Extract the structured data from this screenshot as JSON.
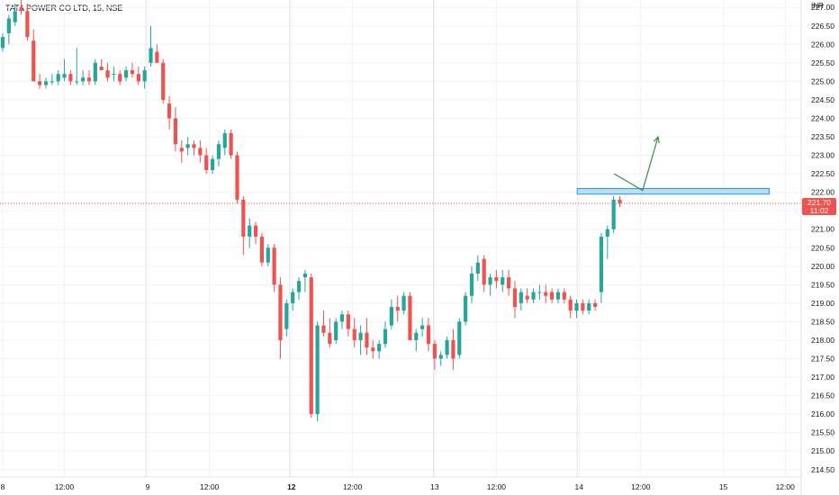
{
  "header": {
    "symbol_title": "TATA POWER CO LTD, 15, NSE"
  },
  "currency": "INR",
  "last_price": {
    "value": "221.70",
    "countdown": "11:02",
    "value_num": 221.7
  },
  "colors": {
    "up": "#26a69a",
    "down": "#ef5350",
    "grid": "#f0f3fa",
    "text": "#131722",
    "drawing": "#388e3c",
    "zone_fill": "#bbdefb",
    "zone_stroke": "#2196f3"
  },
  "chart_data": {
    "type": "candlestick",
    "title": "",
    "ylim": [
      214.3,
      227.2
    ],
    "y_ticks": [
      227.0,
      226.5,
      226.0,
      225.5,
      225.0,
      224.5,
      224.0,
      223.5,
      223.0,
      222.5,
      222.0,
      221.5,
      221.0,
      220.5,
      220.0,
      219.5,
      219.0,
      218.5,
      218.0,
      217.5,
      217.0,
      216.5,
      216.0,
      215.5,
      215.0,
      214.5
    ],
    "x_ticks": [
      {
        "label": "8",
        "bar": 0,
        "bold": false
      },
      {
        "label": "12:00",
        "bar": 10,
        "bold": false
      },
      {
        "label": "9",
        "bar": 23.5,
        "bold": false
      },
      {
        "label": "12:00",
        "bar": 33.5,
        "bold": false
      },
      {
        "label": "12",
        "bar": 46.8,
        "bold": true
      },
      {
        "label": "12:00",
        "bar": 56.7,
        "bold": false
      },
      {
        "label": "13",
        "bar": 70,
        "bold": false
      },
      {
        "label": "12:00",
        "bar": 80,
        "bold": false
      },
      {
        "label": "14",
        "bar": 93.4,
        "bold": false
      },
      {
        "label": "12:00",
        "bar": 103.4,
        "bold": false
      },
      {
        "label": "15",
        "bar": 116.8,
        "bold": false
      },
      {
        "label": "12:00",
        "bar": 126.8,
        "bold": false
      }
    ],
    "day_separators": [
      23.2,
      46.5,
      69.8,
      93.1
    ],
    "candles": [
      [
        225.9,
        226.3,
        225.8,
        226.2
      ],
      [
        226.3,
        226.8,
        226.0,
        226.7
      ],
      [
        226.6,
        227.1,
        226.5,
        226.9
      ],
      [
        227.0,
        227.2,
        226.8,
        226.9
      ],
      [
        226.9,
        227.1,
        226.1,
        226.2
      ],
      [
        226.1,
        226.4,
        225.0,
        225.0
      ],
      [
        225.0,
        225.2,
        224.8,
        224.9
      ],
      [
        224.9,
        225.1,
        224.8,
        225.0
      ],
      [
        225.0,
        225.2,
        224.9,
        225.0
      ],
      [
        225.0,
        225.3,
        224.9,
        225.2
      ],
      [
        225.1,
        225.6,
        225.0,
        225.2
      ],
      [
        225.2,
        225.3,
        224.9,
        225.0
      ],
      [
        225.0,
        225.9,
        224.9,
        225.0
      ],
      [
        225.0,
        225.3,
        224.9,
        225.1
      ],
      [
        225.1,
        225.3,
        224.9,
        225.0
      ],
      [
        225.0,
        225.6,
        224.9,
        225.5
      ],
      [
        225.4,
        225.6,
        225.3,
        225.3
      ],
      [
        225.3,
        225.5,
        225.0,
        225.1
      ],
      [
        225.2,
        225.4,
        225.0,
        225.2
      ],
      [
        225.2,
        225.3,
        224.9,
        225.0
      ],
      [
        225.1,
        225.4,
        225.0,
        225.3
      ],
      [
        225.3,
        225.5,
        225.1,
        225.2
      ],
      [
        225.2,
        225.4,
        224.9,
        225.0
      ],
      [
        225.0,
        225.4,
        224.8,
        225.3
      ],
      [
        225.5,
        226.5,
        225.4,
        225.9
      ],
      [
        225.8,
        226.0,
        225.5,
        225.5
      ],
      [
        225.5,
        225.6,
        224.4,
        224.5
      ],
      [
        224.4,
        224.6,
        223.7,
        224.0
      ],
      [
        224.0,
        224.3,
        223.1,
        223.3
      ],
      [
        223.2,
        223.4,
        222.8,
        223.1
      ],
      [
        223.2,
        223.5,
        223.0,
        223.3
      ],
      [
        223.3,
        223.4,
        223.0,
        223.2
      ],
      [
        223.2,
        223.4,
        222.8,
        223.0
      ],
      [
        223.0,
        223.2,
        222.5,
        222.6
      ],
      [
        222.6,
        223.0,
        222.5,
        222.9
      ],
      [
        222.9,
        223.4,
        222.7,
        223.3
      ],
      [
        223.2,
        223.7,
        223.0,
        223.6
      ],
      [
        223.6,
        223.7,
        222.9,
        223.0
      ],
      [
        223.0,
        223.1,
        221.7,
        221.8
      ],
      [
        221.8,
        221.9,
        220.3,
        220.8
      ],
      [
        220.8,
        221.3,
        220.5,
        221.1
      ],
      [
        221.1,
        221.2,
        220.6,
        220.8
      ],
      [
        220.8,
        220.9,
        220.0,
        220.1
      ],
      [
        220.1,
        220.6,
        220.0,
        220.5
      ],
      [
        220.5,
        220.6,
        219.3,
        219.5
      ],
      [
        219.5,
        219.7,
        217.5,
        218.0
      ],
      [
        218.3,
        219.1,
        218.1,
        219.0
      ],
      [
        219.0,
        219.4,
        218.8,
        219.3
      ],
      [
        219.3,
        219.7,
        219.1,
        219.6
      ],
      [
        219.7,
        219.9,
        219.3,
        219.8
      ],
      [
        219.7,
        219.8,
        215.9,
        216.0
      ],
      [
        216.0,
        218.5,
        215.8,
        218.4
      ],
      [
        218.4,
        218.8,
        218.1,
        218.2
      ],
      [
        218.2,
        218.6,
        217.8,
        217.9
      ],
      [
        218.0,
        218.6,
        217.9,
        218.5
      ],
      [
        218.5,
        218.8,
        218.3,
        218.7
      ],
      [
        218.7,
        218.8,
        218.1,
        218.3
      ],
      [
        218.3,
        218.6,
        217.8,
        218.0
      ],
      [
        218.0,
        218.4,
        217.6,
        218.2
      ],
      [
        218.2,
        218.6,
        217.6,
        217.8
      ],
      [
        217.8,
        218.0,
        217.5,
        217.7
      ],
      [
        217.7,
        218.0,
        217.5,
        217.9
      ],
      [
        217.9,
        218.5,
        217.8,
        218.3
      ],
      [
        218.4,
        219.1,
        218.3,
        218.9
      ],
      [
        218.9,
        219.2,
        218.5,
        218.8
      ],
      [
        218.8,
        219.3,
        218.7,
        219.2
      ],
      [
        219.2,
        219.3,
        218.0,
        218.0
      ],
      [
        218.0,
        218.3,
        217.7,
        218.2
      ],
      [
        218.3,
        218.6,
        218.1,
        218.4
      ],
      [
        218.4,
        218.6,
        217.7,
        217.9
      ],
      [
        217.9,
        218.0,
        217.2,
        217.5
      ],
      [
        217.5,
        217.7,
        217.3,
        217.6
      ],
      [
        217.6,
        218.1,
        217.5,
        218.0
      ],
      [
        218.0,
        218.3,
        217.2,
        217.5
      ],
      [
        217.6,
        218.6,
        217.5,
        218.5
      ],
      [
        218.5,
        219.3,
        218.4,
        219.2
      ],
      [
        219.2,
        220.0,
        219.0,
        219.8
      ],
      [
        219.8,
        220.3,
        219.6,
        220.1
      ],
      [
        220.2,
        220.3,
        219.3,
        219.5
      ],
      [
        219.5,
        219.8,
        219.2,
        219.7
      ],
      [
        219.7,
        219.9,
        219.4,
        219.6
      ],
      [
        219.5,
        219.9,
        219.3,
        219.7
      ],
      [
        219.7,
        219.9,
        219.2,
        219.4
      ],
      [
        219.4,
        219.6,
        218.6,
        218.9
      ],
      [
        219.0,
        219.4,
        218.8,
        219.3
      ],
      [
        219.2,
        219.4,
        219.0,
        219.1
      ],
      [
        219.1,
        219.4,
        219.0,
        219.3
      ],
      [
        219.3,
        219.5,
        219.1,
        219.3
      ],
      [
        219.3,
        219.5,
        219.0,
        219.2
      ],
      [
        219.3,
        219.4,
        219.0,
        219.1
      ],
      [
        219.1,
        219.4,
        219.0,
        219.3
      ],
      [
        219.3,
        219.4,
        219.0,
        219.1
      ],
      [
        219.1,
        219.2,
        218.6,
        218.8
      ],
      [
        218.8,
        219.1,
        218.6,
        219.0
      ],
      [
        219.0,
        219.1,
        218.7,
        218.8
      ],
      [
        218.8,
        219.1,
        218.7,
        219.0
      ],
      [
        219.0,
        219.1,
        218.8,
        218.9
      ],
      [
        219.3,
        220.9,
        219.0,
        220.8
      ],
      [
        220.8,
        221.1,
        220.2,
        221.0
      ],
      [
        221.0,
        221.9,
        220.9,
        221.8
      ],
      [
        221.8,
        221.9,
        221.6,
        221.7
      ]
    ],
    "drawings": {
      "zone": {
        "x1": 93.1,
        "x2": 124.2,
        "y1": 222.1,
        "y2": 221.95
      },
      "arrow_path": [
        [
          99.1,
          222.5
        ],
        [
          103.7,
          222.05
        ],
        [
          106.2,
          223.5
        ]
      ]
    }
  }
}
